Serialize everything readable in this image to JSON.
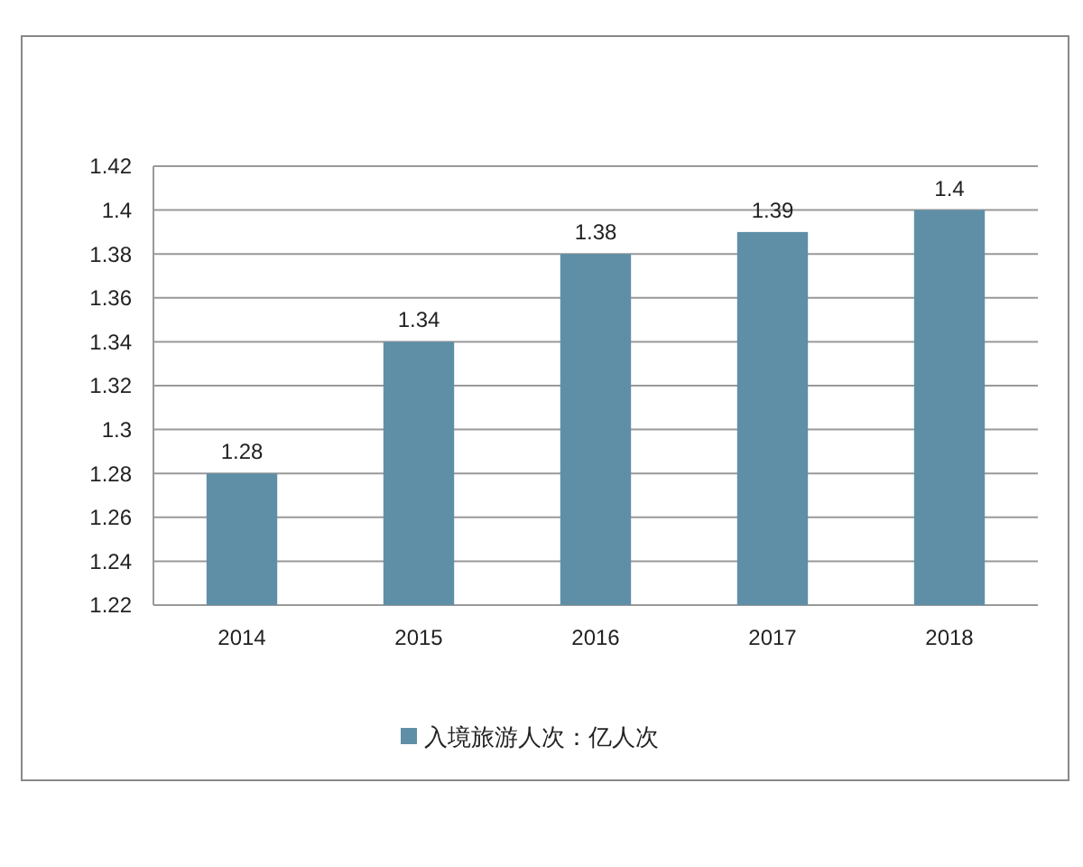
{
  "chart_data": {
    "type": "bar",
    "categories": [
      "2014",
      "2015",
      "2016",
      "2017",
      "2018"
    ],
    "series": [
      {
        "name": "入境旅游人次：亿人次",
        "color": "#5f8fa6",
        "values": [
          1.28,
          1.34,
          1.38,
          1.39,
          1.4
        ]
      }
    ],
    "ylim": [
      1.22,
      1.42
    ],
    "yticks": [
      1.22,
      1.24,
      1.26,
      1.28,
      1.3,
      1.32,
      1.34,
      1.36,
      1.38,
      1.4,
      1.42
    ],
    "grid": "y",
    "data_labels": true,
    "legend": "bottom"
  }
}
